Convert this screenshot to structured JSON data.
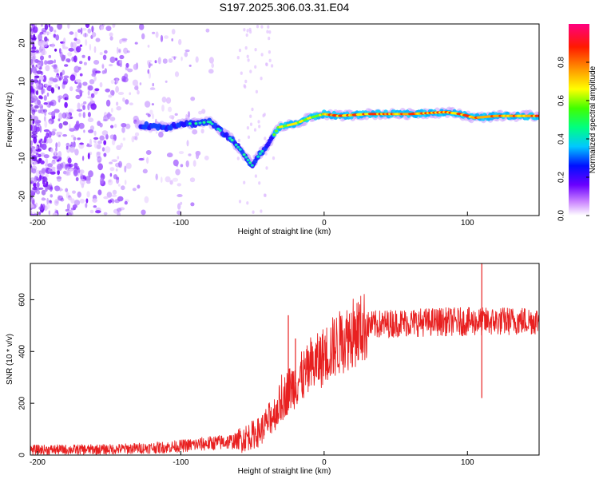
{
  "title": "S197.2025.306.03.31.E04",
  "chart_data": [
    {
      "type": "heatmap",
      "name": "spectrogram",
      "xlabel": "Height of straight line (km)",
      "ylabel": "Frequency (Hz)",
      "xlim": [
        -205,
        150
      ],
      "ylim": [
        -25,
        25
      ],
      "xticks": [
        -200,
        -100,
        0,
        100
      ],
      "yticks": [
        -20,
        -10,
        0,
        10,
        20
      ],
      "colorbar": {
        "label": "Normalized spectral amplitude",
        "range": [
          0.0,
          1.0
        ],
        "ticks": [
          0.0,
          0.2,
          0.4,
          0.6,
          0.8
        ]
      },
      "ridge": [
        {
          "x": -125,
          "y": -1.5
        },
        {
          "x": -110,
          "y": -2
        },
        {
          "x": -100,
          "y": -1
        },
        {
          "x": -90,
          "y": -1
        },
        {
          "x": -80,
          "y": -0.5
        },
        {
          "x": -72,
          "y": -3
        },
        {
          "x": -65,
          "y": -5
        },
        {
          "x": -58,
          "y": -8
        },
        {
          "x": -50,
          "y": -12
        },
        {
          "x": -45,
          "y": -9
        },
        {
          "x": -38,
          "y": -6
        },
        {
          "x": -32,
          "y": -2
        },
        {
          "x": -20,
          "y": -1
        },
        {
          "x": -10,
          "y": 0.5
        },
        {
          "x": 0,
          "y": 1.5
        },
        {
          "x": 10,
          "y": 1
        },
        {
          "x": 30,
          "y": 1.5
        },
        {
          "x": 60,
          "y": 1.5
        },
        {
          "x": 85,
          "y": 2
        },
        {
          "x": 95,
          "y": 1.5
        },
        {
          "x": 105,
          "y": 0.5
        },
        {
          "x": 120,
          "y": 1
        },
        {
          "x": 140,
          "y": 1
        },
        {
          "x": 150,
          "y": 1
        }
      ]
    },
    {
      "type": "line",
      "name": "snr",
      "xlabel": "Height of straight line (km)",
      "ylabel": "SNR (10 * v/v)",
      "xlim": [
        -205,
        150
      ],
      "ylim": [
        0,
        740
      ],
      "xticks": [
        -200,
        -100,
        0,
        100
      ],
      "yticks": [
        0,
        200,
        400,
        600
      ],
      "color": "#e82020",
      "trend": [
        {
          "x": -205,
          "y": 20
        },
        {
          "x": -150,
          "y": 22
        },
        {
          "x": -110,
          "y": 30
        },
        {
          "x": -80,
          "y": 45
        },
        {
          "x": -60,
          "y": 55
        },
        {
          "x": -45,
          "y": 90
        },
        {
          "x": -35,
          "y": 160
        },
        {
          "x": -25,
          "y": 250
        },
        {
          "x": -10,
          "y": 330
        },
        {
          "x": 5,
          "y": 410
        },
        {
          "x": 20,
          "y": 470
        },
        {
          "x": 30,
          "y": 500
        },
        {
          "x": 50,
          "y": 510
        },
        {
          "x": 80,
          "y": 515
        },
        {
          "x": 110,
          "y": 515
        },
        {
          "x": 150,
          "y": 520
        }
      ],
      "spikes": [
        {
          "x": -25,
          "y": 540
        },
        {
          "x": -20,
          "y": 450
        },
        {
          "x": 110,
          "y": 745
        },
        {
          "x": 110,
          "y": 220
        }
      ]
    }
  ]
}
